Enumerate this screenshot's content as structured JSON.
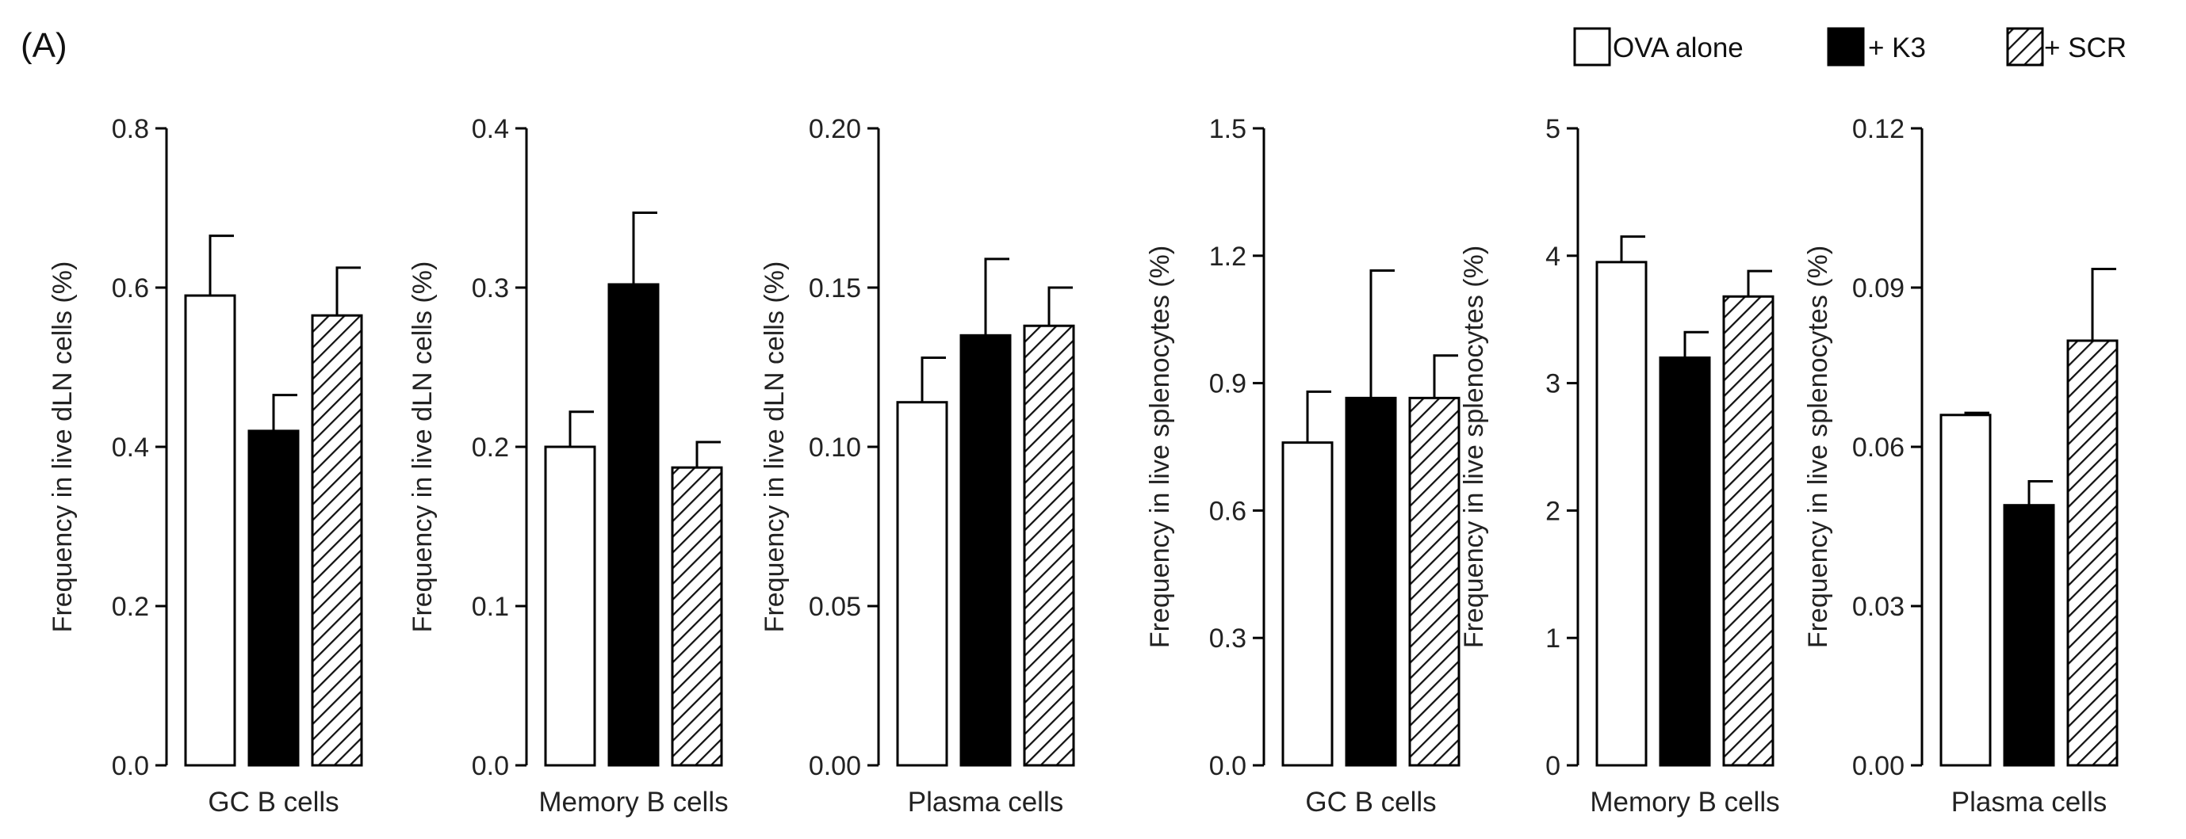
{
  "panel_label": "(A)",
  "legend": [
    {
      "label": "OVA alone",
      "fill": "white"
    },
    {
      "label": "+ K3",
      "fill": "black"
    },
    {
      "label": "+ SCR",
      "fill": "hatch"
    }
  ],
  "chart_data": [
    {
      "type": "bar",
      "title": "",
      "xlabel": "GC B cells",
      "ylabel": "Frequency in live dLN cells (%)",
      "ylim": [
        0,
        0.8
      ],
      "yticks": [
        "0.0",
        "0.2",
        "0.4",
        "0.6",
        "0.8"
      ],
      "series": [
        {
          "name": "OVA alone",
          "value": 0.59,
          "error": 0.075
        },
        {
          "name": "+ K3",
          "value": 0.42,
          "error": 0.045
        },
        {
          "name": "+ SCR",
          "value": 0.565,
          "error": 0.06
        }
      ]
    },
    {
      "type": "bar",
      "title": "",
      "xlabel": "Memory  B cells",
      "ylabel": "Frequency in live dLN cells (%)",
      "ylim": [
        0,
        0.4
      ],
      "yticks": [
        "0.0",
        "0.1",
        "0.2",
        "0.3",
        "0.4"
      ],
      "series": [
        {
          "name": "OVA alone",
          "value": 0.2,
          "error": 0.022
        },
        {
          "name": "+ K3",
          "value": 0.302,
          "error": 0.045
        },
        {
          "name": "+ SCR",
          "value": 0.187,
          "error": 0.016
        }
      ]
    },
    {
      "type": "bar",
      "title": "",
      "xlabel": "Plasma cells",
      "ylabel": "Frequency in live dLN cells (%)",
      "ylim": [
        0,
        0.2
      ],
      "yticks": [
        "0.00",
        "0.05",
        "0.10",
        "0.15",
        "0.20"
      ],
      "series": [
        {
          "name": "OVA alone",
          "value": 0.114,
          "error": 0.014
        },
        {
          "name": "+ K3",
          "value": 0.135,
          "error": 0.024
        },
        {
          "name": "+ SCR",
          "value": 0.138,
          "error": 0.012
        }
      ]
    },
    {
      "type": "bar",
      "title": "",
      "xlabel": "GC B cells",
      "ylabel": "Frequency in live splenocytes (%)",
      "ylim": [
        0,
        1.5
      ],
      "yticks": [
        "0.0",
        "0.3",
        "0.6",
        "0.9",
        "1.2",
        "1.5"
      ],
      "series": [
        {
          "name": "OVA alone",
          "value": 0.76,
          "error": 0.12
        },
        {
          "name": "+ K3",
          "value": 0.865,
          "error": 0.3
        },
        {
          "name": "+ SCR",
          "value": 0.865,
          "error": 0.1
        }
      ]
    },
    {
      "type": "bar",
      "title": "",
      "xlabel": "Memory  B cells",
      "ylabel": "Frequency in live splenocytes (%)",
      "ylim": [
        0,
        5
      ],
      "yticks": [
        "0",
        "1",
        "2",
        "3",
        "4",
        "5"
      ],
      "series": [
        {
          "name": "OVA alone",
          "value": 3.95,
          "error": 0.2
        },
        {
          "name": "+ K3",
          "value": 3.2,
          "error": 0.2
        },
        {
          "name": "+ SCR",
          "value": 3.68,
          "error": 0.2
        }
      ]
    },
    {
      "type": "bar",
      "title": "",
      "xlabel": "Plasma  cells",
      "ylabel": "Frequency in live splenocytes (%)",
      "ylim": [
        0,
        0.12
      ],
      "yticks": [
        "0.00",
        "0.03",
        "0.06",
        "0.09",
        "0.12"
      ],
      "series": [
        {
          "name": "OVA alone",
          "value": 0.066,
          "error": 0.0004
        },
        {
          "name": "+ K3",
          "value": 0.049,
          "error": 0.0045
        },
        {
          "name": "+ SCR",
          "value": 0.08,
          "error": 0.0135
        }
      ]
    }
  ]
}
